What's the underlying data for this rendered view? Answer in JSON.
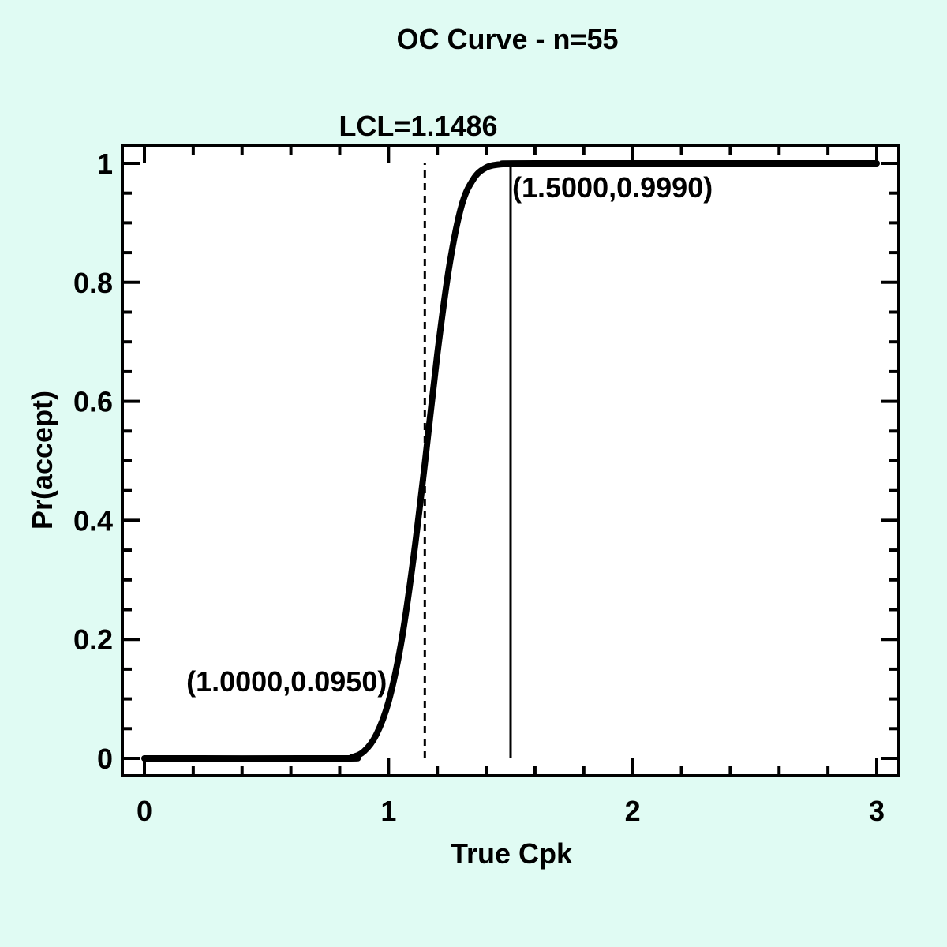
{
  "background_color": "#e0fbf3",
  "chart_data": {
    "type": "line",
    "title": "OC Curve - n=55",
    "xlabel": "True Cpk",
    "ylabel": "Pr(accept)",
    "xlim": [
      0,
      3
    ],
    "ylim": [
      0,
      1
    ],
    "x_ticks": [
      0,
      1,
      2,
      3
    ],
    "x_tick_labels": [
      "0",
      "1",
      "2",
      "3"
    ],
    "y_ticks": [
      0,
      0.2,
      0.4,
      0.6,
      0.8,
      1
    ],
    "y_tick_labels": [
      "0",
      "0.2",
      "0.4",
      "0.6",
      "0.8",
      "1"
    ],
    "x_minor_step": 0.2,
    "y_minor_step": 0.05,
    "grid": false,
    "series": [
      {
        "name": "OC curve",
        "x": [
          0,
          0.8,
          0.85,
          0.9,
          0.95,
          1.0,
          1.05,
          1.1,
          1.15,
          1.2,
          1.25,
          1.3,
          1.35,
          1.4,
          1.45,
          1.5,
          1.6,
          3
        ],
        "y": [
          0,
          0,
          0.002,
          0.012,
          0.04,
          0.095,
          0.19,
          0.33,
          0.5,
          0.68,
          0.83,
          0.93,
          0.975,
          0.993,
          0.998,
          0.999,
          1,
          1
        ]
      }
    ],
    "lcl": {
      "value": 1.1486,
      "label": "LCL=1.1486",
      "style": "dashed"
    },
    "marker_line": {
      "x": 1.5,
      "style": "solid"
    },
    "annotations": [
      {
        "text": "(1.0000,0.0950)",
        "x": 1.0,
        "y": 0.095
      },
      {
        "text": "(1.5000,0.9990)",
        "x": 1.5,
        "y": 0.999
      }
    ]
  }
}
